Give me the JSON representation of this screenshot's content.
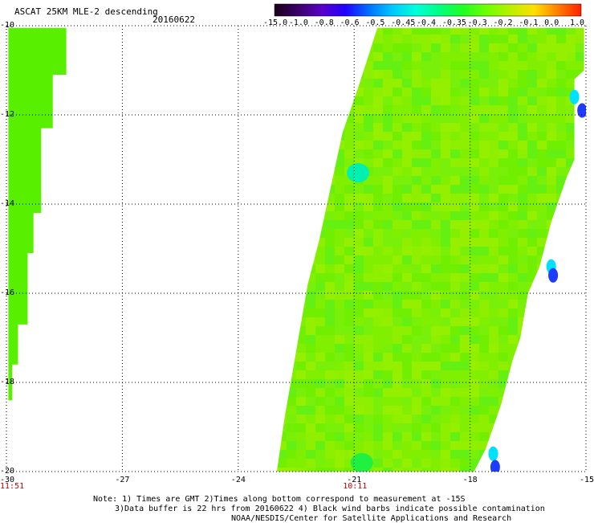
{
  "header": {
    "title": "ASCAT 25KM MLE-2 descending",
    "date": "20160622"
  },
  "colorbar": {
    "labels": [
      "-15.0",
      "-1.0",
      "-0.8",
      "-0.6",
      "-0.5",
      "-0.45",
      "-0.4",
      "-0.35",
      "-0.3",
      "-0.2",
      "-0.1",
      "0.0",
      "1.0"
    ],
    "colors": [
      "#1a0018",
      "#3a0068",
      "#5a00c8",
      "#1e00ff",
      "#0070ff",
      "#00c8ff",
      "#00ffd8",
      "#00ff80",
      "#20ff20",
      "#70ff00",
      "#b8f000",
      "#ffe000",
      "#ff8000",
      "#ff2000"
    ]
  },
  "axes": {
    "lat_labels": [
      "-10",
      "-12",
      "-14",
      "-16",
      "-18",
      "-20"
    ],
    "lon_labels": [
      "-30",
      "-27",
      "-24",
      "-21",
      "-18",
      "-15"
    ],
    "lat_range": [
      -20,
      -10
    ],
    "lon_range": [
      -30,
      -15
    ],
    "grid": "dotted"
  },
  "times": [
    {
      "label": "11:51",
      "lon": -30
    },
    {
      "label": "10:11",
      "lon": -21
    }
  ],
  "notes": [
    "Note: 1) Times are GMT 2)Times along bottom correspond to measurement at -15S",
    "3)Data buffer is 22 hrs from 20160622 4) Black wind barbs indicate possible contamination",
    "NOAA/NESDIS/Center for Satellite Applications and Research"
  ],
  "swaths": [
    {
      "name": "west",
      "polygon": [
        [
          -29.95,
          -10.05
        ],
        [
          -28.45,
          -10.05
        ],
        [
          -28.45,
          -11.1
        ],
        [
          -28.8,
          -11.1
        ],
        [
          -28.8,
          -12.3
        ],
        [
          -29.1,
          -12.3
        ],
        [
          -29.1,
          -14.2
        ],
        [
          -29.3,
          -14.2
        ],
        [
          -29.3,
          -15.1
        ],
        [
          -29.45,
          -15.1
        ],
        [
          -29.45,
          -16.7
        ],
        [
          -29.7,
          -16.7
        ],
        [
          -29.7,
          -17.6
        ],
        [
          -29.85,
          -17.6
        ],
        [
          -29.85,
          -18.4
        ],
        [
          -29.95,
          -18.4
        ]
      ],
      "value": -0.3
    },
    {
      "name": "east",
      "polygon": [
        [
          -20.4,
          -10.05
        ],
        [
          -15.05,
          -10.05
        ],
        [
          -15.05,
          -11.0
        ],
        [
          -15.3,
          -11.2
        ],
        [
          -15.3,
          -13.0
        ],
        [
          -15.5,
          -13.4
        ],
        [
          -15.9,
          -14.4
        ],
        [
          -16.2,
          -15.4
        ],
        [
          -16.5,
          -16.0
        ],
        [
          -16.7,
          -17.0
        ],
        [
          -16.9,
          -17.5
        ],
        [
          -17.2,
          -18.5
        ],
        [
          -17.6,
          -19.5
        ],
        [
          -17.9,
          -20.0
        ],
        [
          -23.0,
          -20.0
        ],
        [
          -22.8,
          -18.8
        ],
        [
          -22.6,
          -17.8
        ],
        [
          -22.4,
          -16.8
        ],
        [
          -22.2,
          -15.8
        ],
        [
          -21.9,
          -14.8
        ],
        [
          -21.6,
          -13.6
        ],
        [
          -21.3,
          -12.4
        ],
        [
          -20.9,
          -11.4
        ],
        [
          -20.6,
          -10.6
        ]
      ],
      "value": -0.28
    }
  ],
  "features": [
    {
      "name": "cyan-patch-east-edge-north",
      "lon": -15.3,
      "lat": -11.6,
      "value": -0.5
    },
    {
      "name": "blue-patch-east-edge-north",
      "lon": -15.1,
      "lat": -11.9,
      "value": -0.8
    },
    {
      "name": "cyan-patch-mid-east",
      "lon": -15.9,
      "lat": -15.4,
      "value": -0.5
    },
    {
      "name": "blue-patch-mid-east",
      "lon": -15.85,
      "lat": -15.6,
      "value": -0.8
    },
    {
      "name": "cyan-patch-west-swath",
      "lon": -20.9,
      "lat": -13.3,
      "value": -0.45
    },
    {
      "name": "cyan-patch-south",
      "lon": -17.4,
      "lat": -19.6,
      "value": -0.5
    },
    {
      "name": "blue-patch-south",
      "lon": -17.35,
      "lat": -19.9,
      "value": -0.8
    },
    {
      "name": "green-patch-south-band",
      "lon": -20.8,
      "lat": -19.8,
      "value": -0.37
    }
  ]
}
